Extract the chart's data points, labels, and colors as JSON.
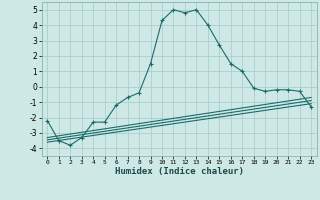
{
  "xlabel": "Humidex (Indice chaleur)",
  "bg_color": "#cde8e5",
  "grid_color": "#aacfcc",
  "line_color": "#1a6b6b",
  "xlim": [
    -0.5,
    23.5
  ],
  "ylim": [
    -4.5,
    5.5
  ],
  "xticks": [
    0,
    1,
    2,
    3,
    4,
    5,
    6,
    7,
    8,
    9,
    10,
    11,
    12,
    13,
    14,
    15,
    16,
    17,
    18,
    19,
    20,
    21,
    22,
    23
  ],
  "yticks": [
    -4,
    -3,
    -2,
    -1,
    0,
    1,
    2,
    3,
    4,
    5
  ],
  "main_x": [
    0,
    1,
    2,
    3,
    4,
    5,
    6,
    7,
    8,
    9,
    10,
    11,
    12,
    13,
    14,
    15,
    16,
    17,
    18,
    19,
    20,
    21,
    22,
    23
  ],
  "main_y": [
    -2.2,
    -3.5,
    -3.8,
    -3.3,
    -2.3,
    -2.3,
    -1.2,
    -0.7,
    -0.4,
    1.5,
    4.3,
    5.0,
    4.8,
    5.0,
    4.0,
    2.7,
    1.5,
    1.0,
    -0.1,
    -0.3,
    -0.2,
    -0.2,
    -0.3,
    -1.3
  ],
  "line1_x": [
    0,
    23
  ],
  "line1_y": [
    -3.6,
    -1.1
  ],
  "line2_x": [
    0,
    23
  ],
  "line2_y": [
    -3.45,
    -0.9
  ],
  "line3_x": [
    0,
    23
  ],
  "line3_y": [
    -3.3,
    -0.7
  ]
}
